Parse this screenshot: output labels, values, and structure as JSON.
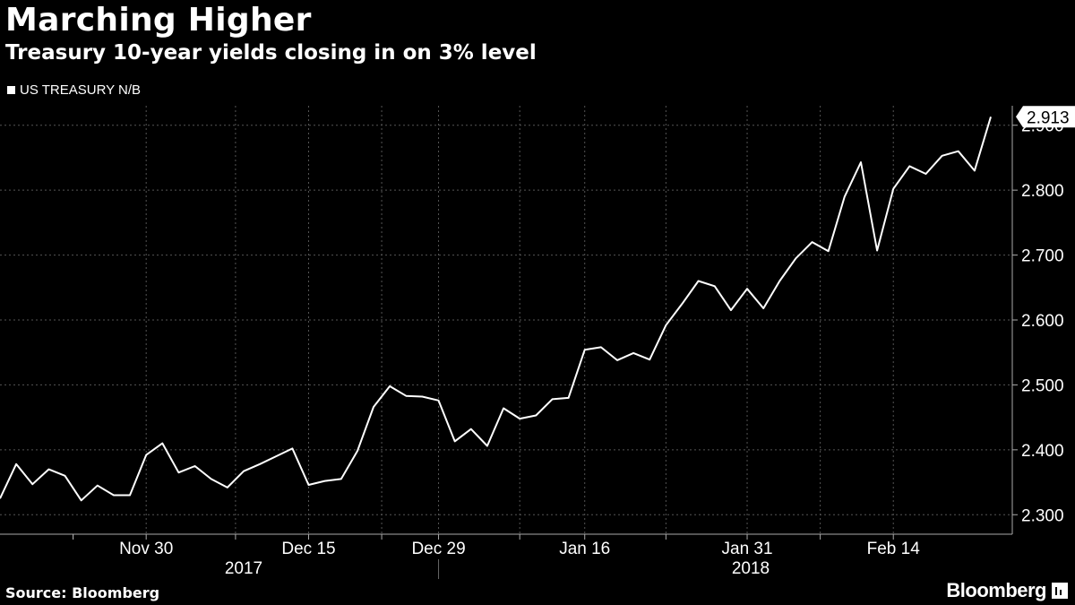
{
  "header": {
    "title": "Marching Higher",
    "subtitle": "Treasury 10-year yields closing in on 3% level"
  },
  "legend": {
    "label": "US TREASURY N/B"
  },
  "footer": {
    "source": "Source: Bloomberg",
    "brand": "Bloomberg"
  },
  "colors": {
    "background": "#000000",
    "line": "#ffffff",
    "grid": "#555555"
  },
  "chart_data": {
    "type": "line",
    "grid": true,
    "y_axis_side": "right",
    "ylim": [
      2.27,
      2.93
    ],
    "yticks": [
      "2.300",
      "2.400",
      "2.500",
      "2.600",
      "2.700",
      "2.800",
      "2.900"
    ],
    "ytick_values": [
      2.3,
      2.4,
      2.5,
      2.6,
      2.7,
      2.8,
      2.9
    ],
    "xticks": [
      "Nov 30",
      "Dec 15",
      "Dec 29",
      "Jan 16",
      "Jan 31",
      "Feb 14"
    ],
    "xtick_positions": [
      9,
      19,
      27,
      36,
      46,
      55
    ],
    "year_labels": [
      "2017",
      "2018"
    ],
    "last_value_label": "2.913",
    "series": [
      {
        "values": [
          2.325,
          2.378,
          2.347,
          2.37,
          2.36,
          2.322,
          2.345,
          2.33,
          2.33,
          2.392,
          2.41,
          2.365,
          2.375,
          2.355,
          2.342,
          2.367,
          2.378,
          2.39,
          2.402,
          2.346,
          2.352,
          2.355,
          2.398,
          2.466,
          2.498,
          2.483,
          2.482,
          2.476,
          2.413,
          2.432,
          2.406,
          2.464,
          2.448,
          2.453,
          2.478,
          2.48,
          2.554,
          2.558,
          2.538,
          2.549,
          2.539,
          2.592,
          2.625,
          2.66,
          2.652,
          2.615,
          2.648,
          2.618,
          2.66,
          2.695,
          2.72,
          2.706,
          2.79,
          2.843,
          2.707,
          2.802,
          2.837,
          2.825,
          2.853,
          2.86,
          2.83,
          2.913
        ]
      }
    ]
  }
}
